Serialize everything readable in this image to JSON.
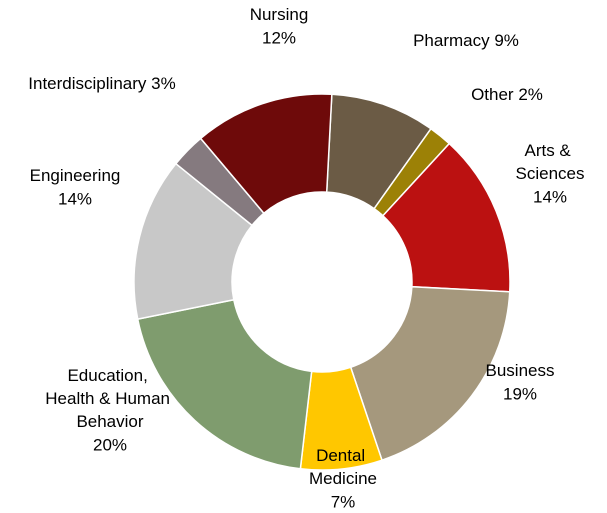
{
  "chart_data": {
    "type": "donut",
    "categories": [
      "Pharmacy",
      "Other",
      "Arts & Sciences",
      "Business",
      "Dental Medicine",
      "Education, Health & Human Behavior",
      "Engineering",
      "Interdisciplinary",
      "Nursing"
    ],
    "values": [
      9,
      2,
      14,
      19,
      7,
      20,
      14,
      3,
      12
    ],
    "value_labels": [
      "9%",
      "2%",
      "14%",
      "19%",
      "7%",
      "20%",
      "14%",
      "3%",
      "12%"
    ],
    "colors": [
      "#6b5b45",
      "#9c8106",
      "#bb1111",
      "#a5987d",
      "#ffc700",
      "#7f9c6e",
      "#c8c8c8",
      "#857a7f",
      "#6e0a0a"
    ]
  }
}
